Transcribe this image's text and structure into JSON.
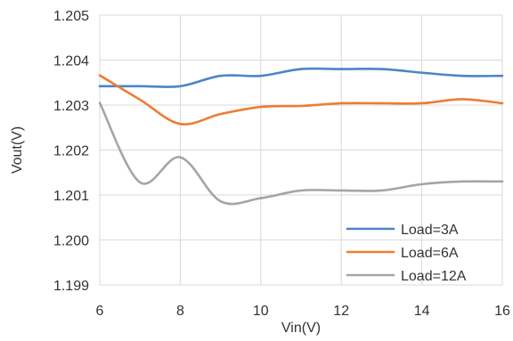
{
  "chart_data": {
    "type": "line",
    "xlabel": "Vin(V)",
    "ylabel": "Vout(V)",
    "xlim": [
      6,
      16
    ],
    "ylim": [
      1.199,
      1.205
    ],
    "x_ticks": [
      "6",
      "8",
      "10",
      "12",
      "14",
      "16"
    ],
    "y_ticks": [
      "1.205",
      "1.204",
      "1.203",
      "1.202",
      "1.201",
      "1.200",
      "1.199"
    ],
    "grid": true,
    "legend_position": "bottom-right",
    "x": [
      6,
      7,
      8,
      9,
      10,
      11,
      12,
      13,
      14,
      15,
      16
    ],
    "series": [
      {
        "name": "Load=3A",
        "color": "#4a86c8",
        "values": [
          1.20342,
          1.20342,
          1.20342,
          1.20365,
          1.20365,
          1.2038,
          1.2038,
          1.2038,
          1.20372,
          1.20365,
          1.20365
        ]
      },
      {
        "name": "Load=6A",
        "color": "#ed7d31",
        "values": [
          1.20366,
          1.20312,
          1.20258,
          1.2028,
          1.20296,
          1.20298,
          1.20304,
          1.20304,
          1.20304,
          1.20313,
          1.20304
        ]
      },
      {
        "name": "Load=12A",
        "color": "#a5a5a5",
        "values": [
          1.20305,
          1.20128,
          1.20184,
          1.20086,
          1.20093,
          1.2011,
          1.2011,
          1.2011,
          1.20124,
          1.2013,
          1.2013
        ]
      }
    ]
  }
}
